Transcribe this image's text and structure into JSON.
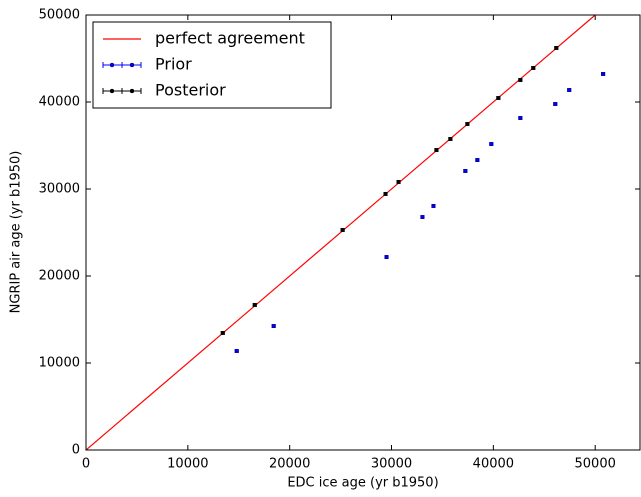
{
  "chart_data": {
    "type": "scatter",
    "xlabel": "EDC ice age (yr b1950)",
    "ylabel": "NGRIP air age (yr b1950)",
    "xlim": [
      0,
      54400
    ],
    "ylim": [
      0,
      50000
    ],
    "xticks": [
      0,
      10000,
      20000,
      30000,
      40000,
      50000
    ],
    "yticks": [
      0,
      10000,
      20000,
      30000,
      40000,
      50000
    ],
    "legend": "upper left",
    "series": [
      {
        "name": "perfect agreement",
        "color": "#ff0000",
        "kind": "line",
        "x": [
          0,
          50000
        ],
        "values": [
          0,
          50000
        ]
      },
      {
        "name": "Prior",
        "color": "#0000ff",
        "kind": "errorbar",
        "error": 150,
        "x": [
          14800,
          18430,
          29510,
          33040,
          34120,
          37250,
          38430,
          39800,
          42650,
          46080,
          47450,
          50780
        ],
        "values": [
          11380,
          14250,
          22180,
          26780,
          28050,
          32070,
          33330,
          35170,
          38160,
          39770,
          41380,
          43220
        ]
      },
      {
        "name": "Posterior",
        "color": "#000000",
        "kind": "errorbar",
        "error": 150,
        "x": [
          13430,
          16570,
          25200,
          29410,
          30690,
          34410,
          35780,
          37450,
          40490,
          42650,
          43920,
          46180
        ],
        "values": [
          13450,
          16670,
          25290,
          29430,
          30810,
          34480,
          35750,
          37470,
          40460,
          42530,
          43910,
          46210
        ]
      }
    ]
  }
}
